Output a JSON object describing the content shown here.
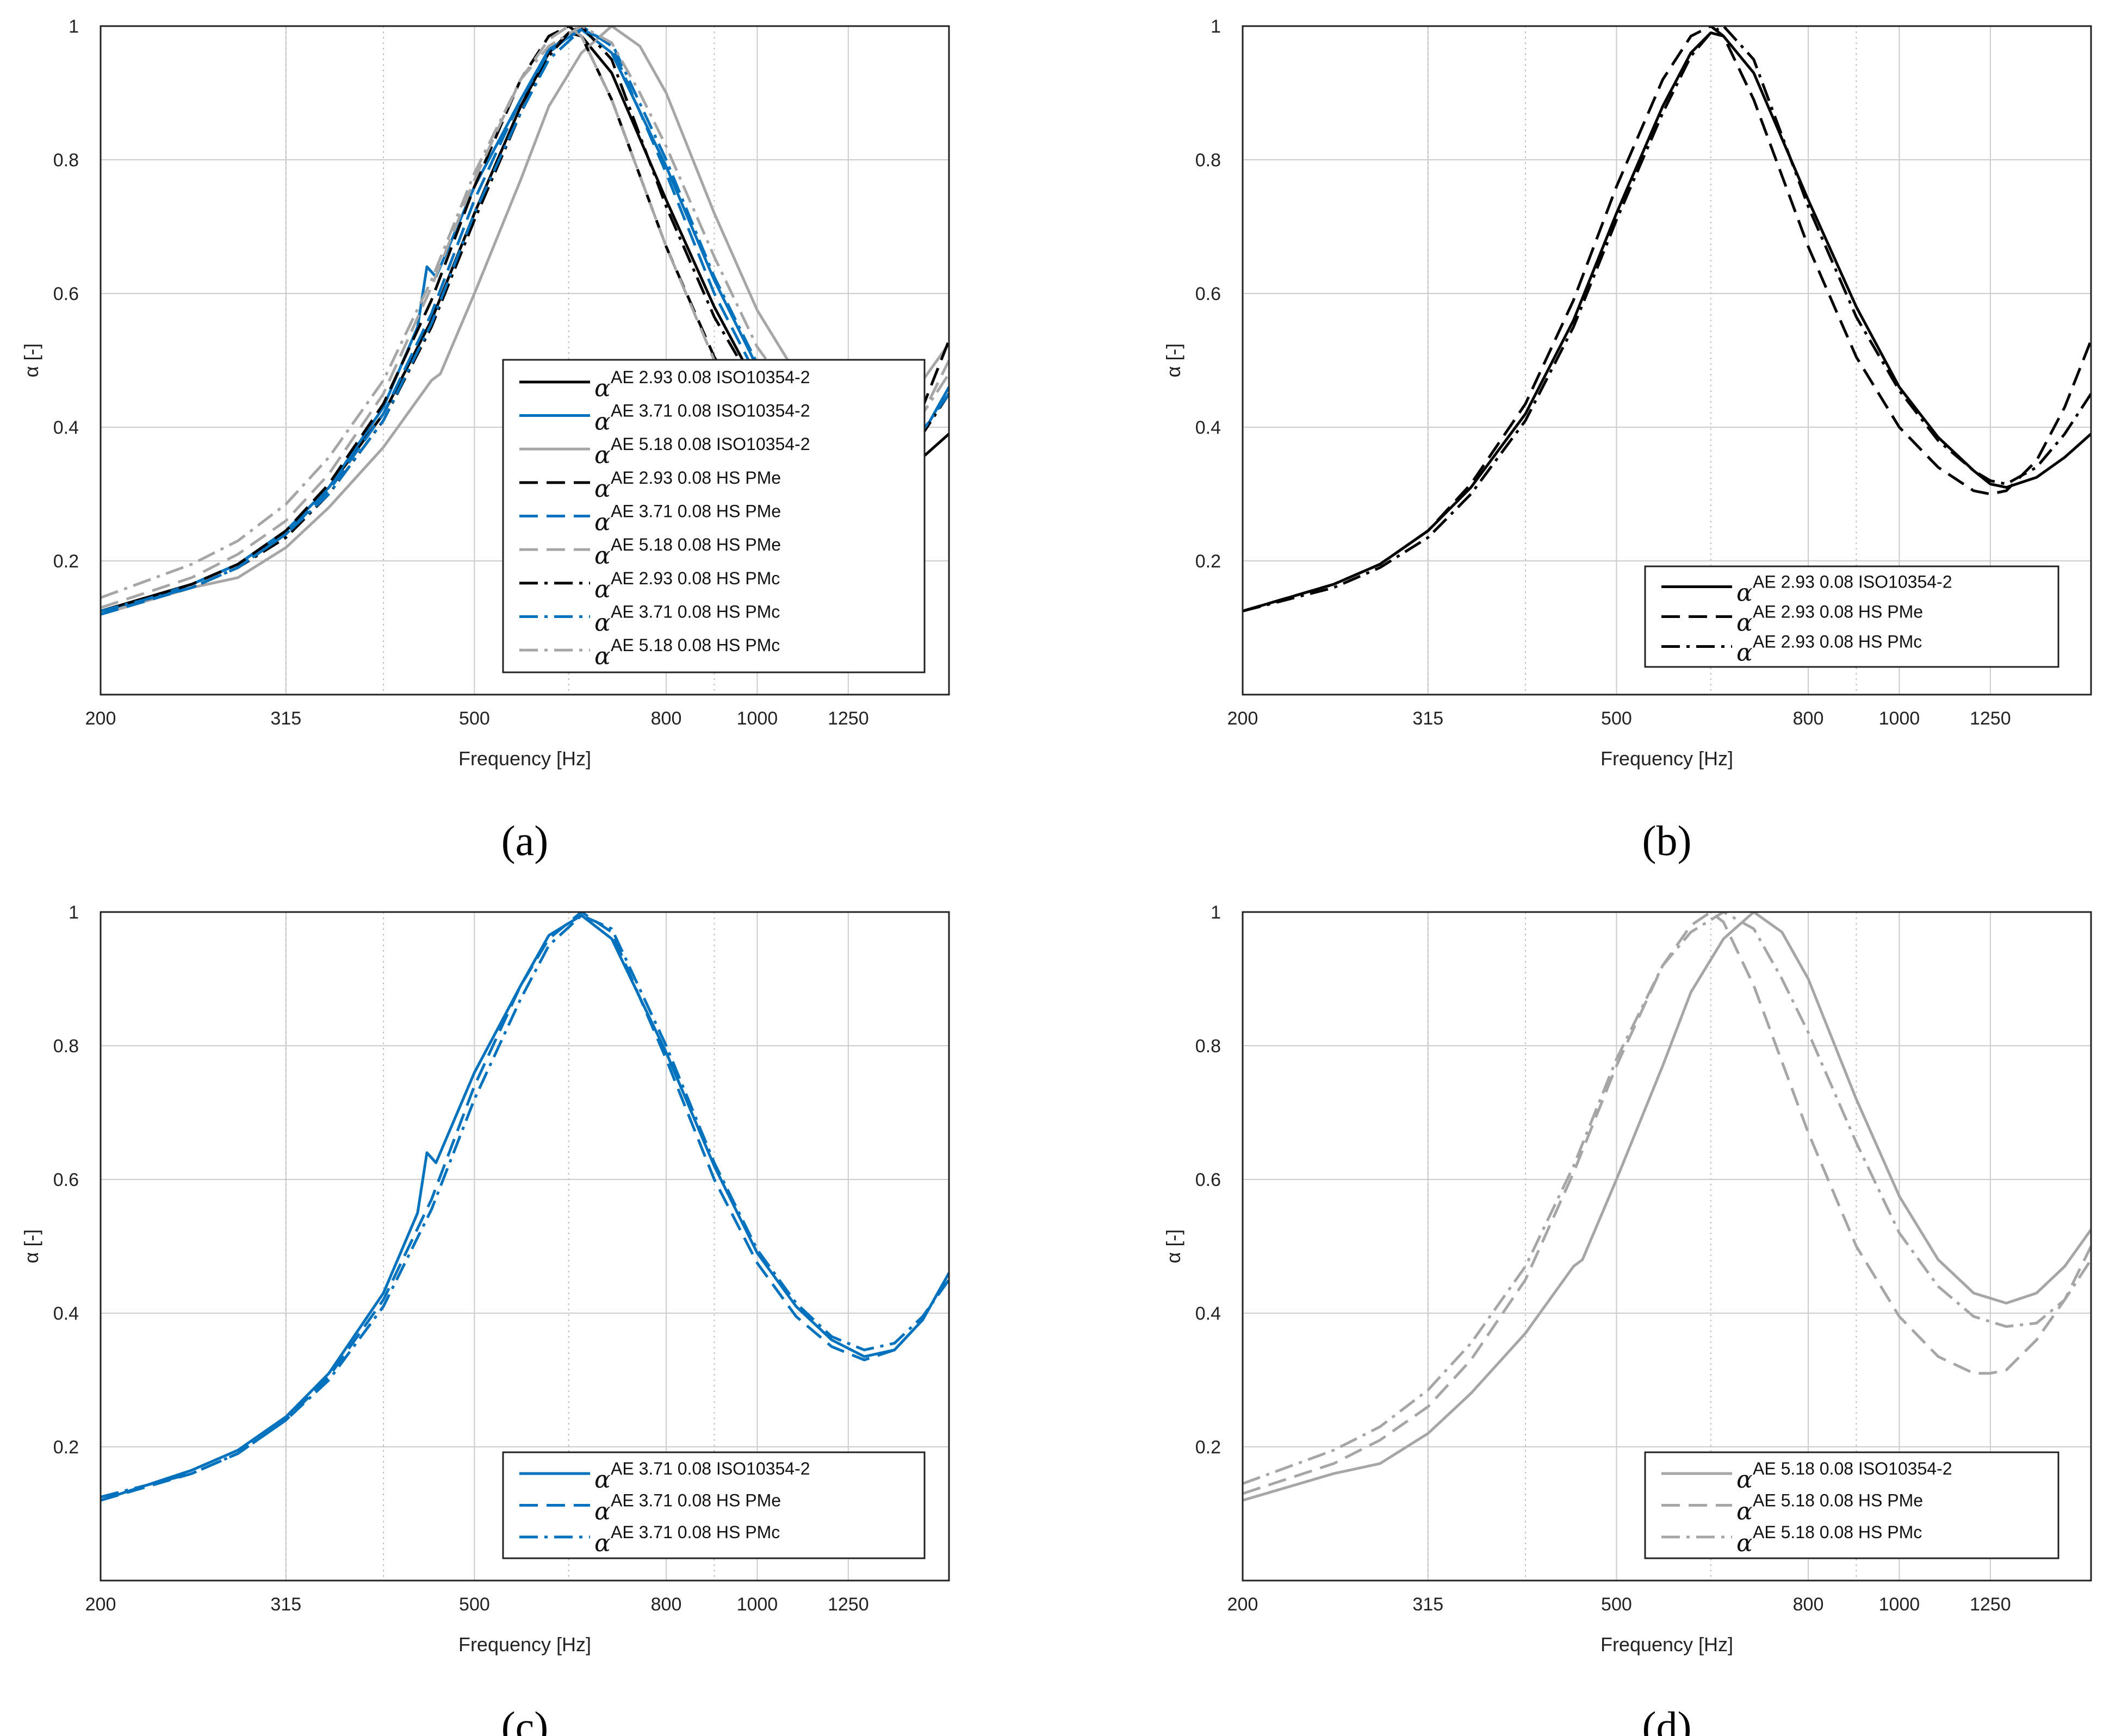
{
  "figure": {
    "captions": [
      "(a)",
      "(b)",
      "(c)",
      "(d)"
    ]
  },
  "colors": {
    "black": "#000000",
    "blue": "#0072BD",
    "gray": "#A6A6A6",
    "grid": "#cccccc",
    "subgrid": "#bbbbbb"
  },
  "chart_data": [
    {
      "id": "a",
      "type": "line",
      "caption": "(a)",
      "xlabel": "Frequency [Hz]",
      "ylabel": "α [-]",
      "xscale": "log",
      "xlim": [
        200,
        1600
      ],
      "ylim": [
        0.0,
        1.0
      ],
      "xticks": [
        200,
        315,
        500,
        800,
        1000,
        1250
      ],
      "yticks": [
        0.2,
        0.4,
        0.6,
        0.8,
        1
      ],
      "minor_x_gridlines": [
        315,
        400,
        630,
        900
      ],
      "legend_position": "lower-right",
      "series": [
        {
          "name": "AE 2.93 0.08 ISO10354-2",
          "material": "AE 2.93",
          "method": "ISO",
          "color": "black",
          "style": "solid"
        },
        {
          "name": "AE 3.71 0.08 ISO10354-2",
          "material": "AE 3.71",
          "method": "ISO",
          "color": "blue",
          "style": "solid"
        },
        {
          "name": "AE 5.18 0.08 ISO10354-2",
          "material": "AE 5.18",
          "method": "ISO",
          "color": "gray",
          "style": "solid"
        },
        {
          "name": "AE 2.93 0.08 HS PMe",
          "material": "AE 2.93",
          "method": "PMe",
          "color": "black",
          "style": "dash"
        },
        {
          "name": "AE 3.71 0.08 HS PMe",
          "material": "AE 3.71",
          "method": "PMe",
          "color": "blue",
          "style": "dash"
        },
        {
          "name": "AE 5.18 0.08 HS PMe",
          "material": "AE 5.18",
          "method": "PMe",
          "color": "gray",
          "style": "dash"
        },
        {
          "name": "AE 2.93 0.08 HS PMc",
          "material": "AE 2.93",
          "method": "PMc",
          "color": "black",
          "style": "dashdot"
        },
        {
          "name": "AE 3.71 0.08 HS PMc",
          "material": "AE 3.71",
          "method": "PMc",
          "color": "blue",
          "style": "dashdot"
        },
        {
          "name": "AE 5.18 0.08 HS PMc",
          "material": "AE 5.18",
          "method": "PMc",
          "color": "gray",
          "style": "dashdot"
        }
      ]
    },
    {
      "id": "b",
      "type": "line",
      "caption": "(b)",
      "xlabel": "Frequency [Hz]",
      "ylabel": "α [-]",
      "xscale": "log",
      "xlim": [
        200,
        1600
      ],
      "ylim": [
        0.0,
        1.0
      ],
      "xticks": [
        200,
        315,
        500,
        800,
        1000,
        1250
      ],
      "yticks": [
        0.2,
        0.4,
        0.6,
        0.8,
        1
      ],
      "minor_x_gridlines": [
        315,
        400,
        630,
        900
      ],
      "legend_position": "lower-right",
      "series": [
        {
          "name": "AE 2.93 0.08 ISO10354-2",
          "material": "AE 2.93",
          "method": "ISO",
          "color": "black",
          "style": "solid"
        },
        {
          "name": "AE 2.93 0.08 HS PMe",
          "material": "AE 2.93",
          "method": "PMe",
          "color": "black",
          "style": "dash"
        },
        {
          "name": "AE 2.93 0.08 HS PMc",
          "material": "AE 2.93",
          "method": "PMc",
          "color": "black",
          "style": "dashdot"
        }
      ]
    },
    {
      "id": "c",
      "type": "line",
      "caption": "(c)",
      "xlabel": "Frequency [Hz]",
      "ylabel": "α [-]",
      "xscale": "log",
      "xlim": [
        200,
        1600
      ],
      "ylim": [
        0.0,
        1.0
      ],
      "xticks": [
        200,
        315,
        500,
        800,
        1000,
        1250
      ],
      "yticks": [
        0.2,
        0.4,
        0.6,
        0.8,
        1
      ],
      "minor_x_gridlines": [
        315,
        400,
        630,
        900
      ],
      "legend_position": "lower-right",
      "series": [
        {
          "name": "AE 3.71 0.08 ISO10354-2",
          "material": "AE 3.71",
          "method": "ISO",
          "color": "blue",
          "style": "solid"
        },
        {
          "name": "AE 3.71 0.08 HS PMe",
          "material": "AE 3.71",
          "method": "PMe",
          "color": "blue",
          "style": "dash"
        },
        {
          "name": "AE 3.71 0.08 HS PMc",
          "material": "AE 3.71",
          "method": "PMc",
          "color": "blue",
          "style": "dashdot"
        }
      ]
    },
    {
      "id": "d",
      "type": "line",
      "caption": "(d)",
      "xlabel": "Frequency [Hz]",
      "ylabel": "α [-]",
      "xscale": "log",
      "xlim": [
        200,
        1600
      ],
      "ylim": [
        0.0,
        1.0
      ],
      "xticks": [
        200,
        315,
        500,
        800,
        1000,
        1250
      ],
      "yticks": [
        0.2,
        0.4,
        0.6,
        0.8,
        1
      ],
      "minor_x_gridlines": [
        315,
        400,
        630,
        900
      ],
      "legend_position": "lower-right",
      "series": [
        {
          "name": "AE 5.18 0.08 ISO10354-2",
          "material": "AE 5.18",
          "method": "ISO",
          "color": "gray",
          "style": "solid"
        },
        {
          "name": "AE 5.18 0.08 HS PMe",
          "material": "AE 5.18",
          "method": "PMe",
          "color": "gray",
          "style": "dash"
        },
        {
          "name": "AE 5.18 0.08 HS PMc",
          "material": "AE 5.18",
          "method": "PMc",
          "color": "gray",
          "style": "dashdot"
        }
      ]
    }
  ],
  "curves": {
    "AE 2.93|ISO": {
      "x": [
        200,
        250,
        280,
        315,
        350,
        400,
        450,
        500,
        560,
        600,
        630,
        650,
        700,
        800,
        900,
        1000,
        1100,
        1200,
        1250,
        1300,
        1400,
        1500,
        1600
      ],
      "y": [
        0.125,
        0.165,
        0.195,
        0.245,
        0.31,
        0.42,
        0.56,
        0.72,
        0.88,
        0.96,
        0.99,
        0.985,
        0.93,
        0.74,
        0.58,
        0.46,
        0.385,
        0.335,
        0.315,
        0.31,
        0.325,
        0.355,
        0.39
      ]
    },
    "AE 2.93|PMe": {
      "x": [
        200,
        250,
        280,
        315,
        350,
        400,
        450,
        500,
        560,
        600,
        630,
        650,
        700,
        800,
        900,
        1000,
        1100,
        1200,
        1250,
        1300,
        1400,
        1500,
        1600
      ],
      "y": [
        0.125,
        0.165,
        0.195,
        0.245,
        0.315,
        0.435,
        0.59,
        0.76,
        0.92,
        0.985,
        1.0,
        0.985,
        0.89,
        0.67,
        0.505,
        0.4,
        0.34,
        0.305,
        0.3,
        0.305,
        0.35,
        0.43,
        0.53
      ]
    },
    "AE 2.93|PMc": {
      "x": [
        200,
        250,
        280,
        315,
        350,
        400,
        450,
        500,
        560,
        600,
        630,
        650,
        700,
        800,
        900,
        1000,
        1100,
        1200,
        1250,
        1300,
        1400,
        1500,
        1600
      ],
      "y": [
        0.125,
        0.16,
        0.19,
        0.235,
        0.3,
        0.41,
        0.55,
        0.71,
        0.87,
        0.955,
        0.99,
        1.0,
        0.95,
        0.73,
        0.565,
        0.455,
        0.38,
        0.335,
        0.32,
        0.315,
        0.34,
        0.39,
        0.45
      ]
    },
    "AE 3.71|ISO": {
      "x": [
        200,
        250,
        280,
        315,
        350,
        400,
        435,
        445,
        455,
        500,
        560,
        600,
        650,
        700,
        800,
        900,
        1000,
        1100,
        1200,
        1300,
        1400,
        1500,
        1600
      ],
      "y": [
        0.12,
        0.165,
        0.195,
        0.245,
        0.31,
        0.43,
        0.55,
        0.64,
        0.625,
        0.76,
        0.89,
        0.965,
        0.995,
        0.96,
        0.79,
        0.62,
        0.49,
        0.41,
        0.36,
        0.335,
        0.345,
        0.39,
        0.46
      ]
    },
    "AE 3.71|PMe": {
      "x": [
        200,
        250,
        280,
        315,
        350,
        400,
        450,
        500,
        560,
        600,
        650,
        700,
        800,
        900,
        1000,
        1100,
        1200,
        1300,
        1400,
        1500,
        1600
      ],
      "y": [
        0.12,
        0.16,
        0.19,
        0.24,
        0.305,
        0.42,
        0.57,
        0.74,
        0.89,
        0.96,
        1.0,
        0.97,
        0.78,
        0.6,
        0.475,
        0.395,
        0.35,
        0.33,
        0.345,
        0.39,
        0.46
      ]
    },
    "AE 3.71|PMc": {
      "x": [
        200,
        250,
        280,
        315,
        350,
        400,
        450,
        500,
        560,
        600,
        650,
        700,
        800,
        900,
        1000,
        1100,
        1200,
        1300,
        1400,
        1500,
        1600
      ],
      "y": [
        0.125,
        0.16,
        0.19,
        0.24,
        0.3,
        0.41,
        0.555,
        0.72,
        0.87,
        0.95,
        0.995,
        0.975,
        0.8,
        0.625,
        0.495,
        0.415,
        0.365,
        0.345,
        0.355,
        0.395,
        0.45
      ]
    },
    "AE 5.18|ISO": {
      "x": [
        200,
        250,
        280,
        315,
        350,
        400,
        450,
        460,
        500,
        560,
        600,
        650,
        700,
        750,
        800,
        900,
        1000,
        1100,
        1200,
        1300,
        1400,
        1500,
        1600
      ],
      "y": [
        0.12,
        0.16,
        0.175,
        0.22,
        0.28,
        0.37,
        0.47,
        0.48,
        0.6,
        0.77,
        0.88,
        0.96,
        1.0,
        0.97,
        0.9,
        0.72,
        0.575,
        0.48,
        0.43,
        0.415,
        0.43,
        0.47,
        0.525
      ]
    },
    "AE 5.18|PMe": {
      "x": [
        200,
        250,
        280,
        315,
        350,
        400,
        450,
        500,
        560,
        600,
        630,
        650,
        700,
        800,
        900,
        1000,
        1100,
        1200,
        1250,
        1300,
        1400,
        1500,
        1600
      ],
      "y": [
        0.13,
        0.175,
        0.21,
        0.26,
        0.33,
        0.45,
        0.61,
        0.77,
        0.92,
        0.98,
        1.0,
        0.985,
        0.89,
        0.67,
        0.5,
        0.395,
        0.335,
        0.31,
        0.31,
        0.315,
        0.36,
        0.42,
        0.5
      ]
    },
    "AE 5.18|PMc": {
      "x": [
        200,
        250,
        280,
        315,
        350,
        400,
        450,
        500,
        560,
        600,
        650,
        700,
        750,
        800,
        900,
        1000,
        1100,
        1200,
        1300,
        1400,
        1500,
        1600
      ],
      "y": [
        0.145,
        0.195,
        0.23,
        0.285,
        0.355,
        0.47,
        0.62,
        0.78,
        0.92,
        0.97,
        1.0,
        0.975,
        0.9,
        0.82,
        0.655,
        0.52,
        0.44,
        0.395,
        0.38,
        0.385,
        0.42,
        0.48
      ]
    }
  }
}
